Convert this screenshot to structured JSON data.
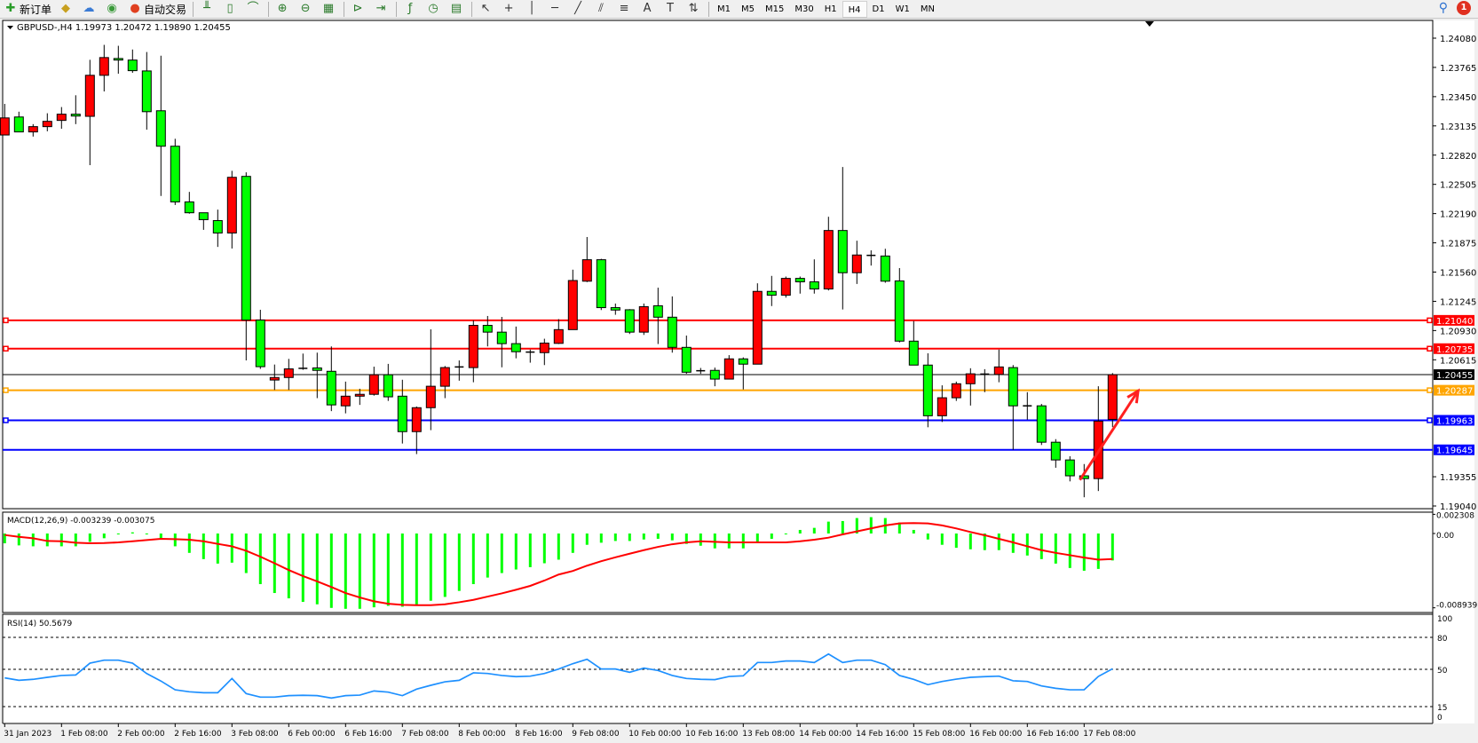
{
  "toolbar": {
    "items": [
      {
        "label": "新订单",
        "icon": "new-order-icon",
        "glyph": "✚",
        "color": "#2a9d2a"
      },
      {
        "label": "",
        "icon": "history-center-icon",
        "glyph": "◆",
        "color": "#c8a020"
      },
      {
        "label": "",
        "icon": "download-icon",
        "glyph": "☁",
        "color": "#3a7bd5"
      },
      {
        "label": "",
        "icon": "signal-icon",
        "glyph": "◉",
        "color": "#3a9a3a"
      },
      {
        "label": "自动交易",
        "icon": "auto-trading-icon",
        "glyph": "●",
        "color": "#e04020"
      }
    ],
    "tools": [
      {
        "icon": "bar-chart-icon",
        "glyph": "╨"
      },
      {
        "icon": "candlestick-icon",
        "glyph": "▯"
      },
      {
        "icon": "line-chart-icon",
        "glyph": "⌒"
      },
      {
        "icon": "zoom-in-icon",
        "glyph": "⊕"
      },
      {
        "icon": "zoom-out-icon",
        "glyph": "⊖"
      },
      {
        "icon": "tile-windows-icon",
        "glyph": "▦"
      },
      {
        "icon": "autoscroll-icon",
        "glyph": "⊳"
      },
      {
        "icon": "chart-shift-icon",
        "glyph": "⇥"
      },
      {
        "icon": "indicators-icon",
        "glyph": "ƒ"
      },
      {
        "icon": "periods-icon",
        "glyph": "◷"
      },
      {
        "icon": "templates-icon",
        "glyph": "▤"
      },
      {
        "icon": "cursor-icon",
        "glyph": "↖"
      },
      {
        "icon": "crosshair-icon",
        "glyph": "+"
      },
      {
        "icon": "vertical-line-icon",
        "glyph": "│"
      },
      {
        "icon": "horizontal-line-icon",
        "glyph": "─"
      },
      {
        "icon": "trendline-icon",
        "glyph": "╱"
      },
      {
        "icon": "equidistant-channel-icon",
        "glyph": "⫽"
      },
      {
        "icon": "fibonacci-icon",
        "glyph": "≡"
      },
      {
        "icon": "text-icon",
        "glyph": "A"
      },
      {
        "icon": "text-label-icon",
        "glyph": "T"
      },
      {
        "icon": "arrows-icon",
        "glyph": "⇅"
      }
    ],
    "timeframes": [
      "M1",
      "M5",
      "M15",
      "M30",
      "H1",
      "H4",
      "D1",
      "W1",
      "MN"
    ],
    "selected_timeframe": "H4",
    "notification_count": "1"
  },
  "chart_data": {
    "type": "candlestick",
    "title": "GBPUSD-,H4  1.19973 1.20472 1.19890 1.20455",
    "colors": {
      "up": "#ff0000",
      "down": "#00ff00",
      "outline": "#000000"
    },
    "ylim": [
      1.1904,
      1.2408
    ],
    "y_ticks": [
      "1.24080",
      "1.23765",
      "1.23450",
      "1.23135",
      "1.22820",
      "1.22505",
      "1.22190",
      "1.21875",
      "1.21560",
      "1.21245",
      "1.20930",
      "1.20615",
      "1.19355",
      "1.19040"
    ],
    "x_labels": [
      "31 Jan 2023",
      "1 Feb 08:00",
      "2 Feb 00:00",
      "2 Feb 16:00",
      "3 Feb 08:00",
      "6 Feb 00:00",
      "6 Feb 16:00",
      "7 Feb 08:00",
      "8 Feb 00:00",
      "8 Feb 16:00",
      "9 Feb 08:00",
      "10 Feb 00:00",
      "10 Feb 16:00",
      "13 Feb 08:00",
      "14 Feb 00:00",
      "14 Feb 16:00",
      "15 Feb 08:00",
      "16 Feb 00:00",
      "16 Feb 16:00",
      "17 Feb 08:00"
    ],
    "ohlc": [
      [
        1.23037,
        1.23372,
        1.23037,
        1.23221
      ],
      [
        1.23231,
        1.23288,
        1.2307,
        1.2307
      ],
      [
        1.2307,
        1.23154,
        1.2302,
        1.23127
      ],
      [
        1.23127,
        1.23271,
        1.23077,
        1.23184
      ],
      [
        1.23194,
        1.23338,
        1.23104,
        1.23261
      ],
      [
        1.23261,
        1.23465,
        1.23154,
        1.23241
      ],
      [
        1.23238,
        1.23847,
        1.22712,
        1.2368
      ],
      [
        1.2368,
        1.24008,
        1.23506,
        1.23871
      ],
      [
        1.23861,
        1.23998,
        1.23697,
        1.23844
      ],
      [
        1.23844,
        1.23958,
        1.23707,
        1.2373
      ],
      [
        1.23727,
        1.23931,
        1.23094,
        1.23288
      ],
      [
        1.23298,
        1.23891,
        1.2238,
        1.22916
      ],
      [
        1.22916,
        1.22996,
        1.22283,
        1.22316
      ],
      [
        1.22316,
        1.22424,
        1.22189,
        1.22199
      ],
      [
        1.22199,
        1.22199,
        1.22015,
        1.22125
      ],
      [
        1.22115,
        1.22233,
        1.21831,
        1.21981
      ],
      [
        1.21981,
        1.22651,
        1.21814,
        1.22581
      ],
      [
        1.22591,
        1.22635,
        1.20608,
        1.21043
      ],
      [
        1.21043,
        1.21154,
        1.20517,
        1.20541
      ],
      [
        1.20397,
        1.20564,
        1.2029,
        1.20424
      ],
      [
        1.20424,
        1.20625,
        1.2029,
        1.20517
      ],
      [
        1.20521,
        1.20682,
        1.20507,
        1.20523
      ],
      [
        1.20527,
        1.20692,
        1.20202,
        1.20501
      ],
      [
        1.20491,
        1.20759,
        1.20062,
        1.20129
      ],
      [
        1.20119,
        1.2038,
        1.20038,
        1.20223
      ],
      [
        1.20223,
        1.20303,
        1.20129,
        1.20243
      ],
      [
        1.20243,
        1.20541,
        1.20229,
        1.20454
      ],
      [
        1.20454,
        1.20571,
        1.20172,
        1.20216
      ],
      [
        1.20223,
        1.204,
        1.19713,
        1.19841
      ],
      [
        1.19841,
        1.20112,
        1.19599,
        1.20099
      ],
      [
        1.20099,
        1.20943,
        1.19857,
        1.2033
      ],
      [
        1.2033,
        1.20548,
        1.20202,
        1.20531
      ],
      [
        1.20534,
        1.20608,
        1.2039,
        1.20538
      ],
      [
        1.20531,
        1.2104,
        1.20373,
        1.20986
      ],
      [
        1.20986,
        1.21087,
        1.20759,
        1.20913
      ],
      [
        1.20913,
        1.21077,
        1.20534,
        1.20789
      ],
      [
        1.20789,
        1.20973,
        1.20631,
        1.20702
      ],
      [
        1.20698,
        1.20725,
        1.20584,
        1.20695
      ],
      [
        1.20692,
        1.20842,
        1.20558,
        1.20795
      ],
      [
        1.20792,
        1.21053,
        1.20785,
        1.2094
      ],
      [
        1.2094,
        1.21586,
        1.2094,
        1.21469
      ],
      [
        1.21462,
        1.21938,
        1.21452,
        1.21693
      ],
      [
        1.21693,
        1.21703,
        1.21151,
        1.21177
      ],
      [
        1.21177,
        1.21221,
        1.211,
        1.21151
      ],
      [
        1.21154,
        1.21161,
        1.20893,
        1.20913
      ],
      [
        1.20913,
        1.21221,
        1.20883,
        1.21187
      ],
      [
        1.21197,
        1.21392,
        1.20785,
        1.21074
      ],
      [
        1.21074,
        1.21298,
        1.20692,
        1.20749
      ],
      [
        1.20749,
        1.20876,
        1.20464,
        1.20481
      ],
      [
        1.20497,
        1.20527,
        1.20464,
        1.20494
      ],
      [
        1.20501,
        1.20531,
        1.2033,
        1.20407
      ],
      [
        1.20407,
        1.20665,
        1.20407,
        1.20625
      ],
      [
        1.20625,
        1.20641,
        1.20296,
        1.20568
      ],
      [
        1.20568,
        1.21439,
        1.20568,
        1.21352
      ],
      [
        1.21352,
        1.21519,
        1.21194,
        1.21311
      ],
      [
        1.21311,
        1.21512,
        1.21285,
        1.21492
      ],
      [
        1.21492,
        1.21512,
        1.21328,
        1.21455
      ],
      [
        1.21455,
        1.21697,
        1.21328,
        1.21378
      ],
      [
        1.21378,
        1.22156,
        1.21362,
        1.22008
      ],
      [
        1.22008,
        1.22692,
        1.21157,
        1.21553
      ],
      [
        1.21553,
        1.21898,
        1.21432,
        1.21744
      ],
      [
        1.2174,
        1.21794,
        1.2163,
        1.21737
      ],
      [
        1.21733,
        1.21811,
        1.21445,
        1.21462
      ],
      [
        1.21465,
        1.21603,
        1.20802,
        1.20816
      ],
      [
        1.20816,
        1.21033,
        1.20558,
        1.20558
      ],
      [
        1.20558,
        1.20685,
        1.19888,
        1.20012
      ],
      [
        1.20012,
        1.2034,
        1.19945,
        1.20206
      ],
      [
        1.20206,
        1.2038,
        1.20172,
        1.20357
      ],
      [
        1.20357,
        1.20524,
        1.20122,
        1.20464
      ],
      [
        1.20461,
        1.20514,
        1.20266,
        1.20457
      ],
      [
        1.20457,
        1.20725,
        1.20373,
        1.20538
      ],
      [
        1.20531,
        1.20558,
        1.19646,
        1.20119
      ],
      [
        1.20119,
        1.20266,
        1.19971,
        1.20115
      ],
      [
        1.20119,
        1.20139,
        1.19697,
        1.19727
      ],
      [
        1.19727,
        1.1976,
        1.19452,
        1.19536
      ],
      [
        1.19536,
        1.19576,
        1.19305,
        1.19365
      ],
      [
        1.19365,
        1.19492,
        1.19134,
        1.19335
      ],
      [
        1.19335,
        1.2033,
        1.19201,
        1.19954
      ],
      [
        1.19973,
        1.20472,
        1.1989,
        1.20455
      ]
    ],
    "horizontal_lines": [
      {
        "price": "1.21040",
        "color": "#ff0000",
        "marker": true
      },
      {
        "price": "1.20735",
        "color": "#ff0000",
        "marker": true
      },
      {
        "price": "1.20455",
        "color": "#000000",
        "marker": false,
        "thin": true
      },
      {
        "price": "1.20287",
        "color": "#ffa500",
        "marker": true
      },
      {
        "price": "1.19963",
        "color": "#0000ff",
        "marker": true
      },
      {
        "price": "1.19645",
        "color": "#0000ff",
        "marker": false
      }
    ],
    "annotation_arrow": {
      "color": "#ff2020",
      "from_bar": 75.7,
      "from_price": 1.1932,
      "to_bar": 79.8,
      "to_price": 1.2028
    },
    "macd": {
      "title": "MACD(12,26,9) -0.003239 -0.003075",
      "y_ticks": [
        "0.002308",
        "0.00",
        "-0.008939"
      ],
      "ylim": [
        -0.008939,
        0.002308
      ],
      "hist_color": "#00ff00",
      "signal_color": "#ff0000",
      "histogram": [
        -0.00118,
        -0.00143,
        -0.00154,
        -0.00154,
        -0.00154,
        -0.00154,
        -0.001,
        -0.00057,
        -0.00011,
        0.00014,
        -0.00011,
        -0.00057,
        -0.00154,
        -0.00233,
        -0.00308,
        -0.00362,
        -0.00351,
        -0.00476,
        -0.00609,
        -0.00716,
        -0.0078,
        -0.00823,
        -0.00852,
        -0.00895,
        -0.00906,
        -0.00906,
        -0.00888,
        -0.0087,
        -0.00881,
        -0.00859,
        -0.00809,
        -0.00763,
        -0.00691,
        -0.00609,
        -0.0053,
        -0.00476,
        -0.00433,
        -0.00405,
        -0.00358,
        -0.00315,
        -0.00233,
        -0.00136,
        -0.00111,
        -0.0009,
        -0.0009,
        -0.00072,
        -0.00064,
        -0.00082,
        -0.00125,
        -0.00147,
        -0.00179,
        -0.00179,
        -0.00179,
        -0.00111,
        -0.00064,
        -2e-05,
        0.00043,
        0.00068,
        0.00143,
        0.0015,
        0.00186,
        0.00197,
        0.00186,
        0.00132,
        0.00043,
        -0.00072,
        -0.00136,
        -0.00172,
        -0.0019,
        -0.002,
        -0.002,
        -0.00233,
        -0.00265,
        -0.00308,
        -0.00362,
        -0.00415,
        -0.00448,
        -0.00426,
        -0.003239
      ],
      "signal": [
        -0.00018,
        -0.0004,
        -0.00057,
        -0.0009,
        -0.00093,
        -0.00111,
        -0.00118,
        -0.00115,
        -0.00107,
        -0.00093,
        -0.00079,
        -0.00064,
        -0.00068,
        -0.00075,
        -0.00093,
        -0.00125,
        -0.00154,
        -0.00208,
        -0.00279,
        -0.00358,
        -0.0044,
        -0.00512,
        -0.00576,
        -0.00644,
        -0.00716,
        -0.0077,
        -0.00816,
        -0.00845,
        -0.00859,
        -0.00863,
        -0.00863,
        -0.00852,
        -0.00827,
        -0.00798,
        -0.00759,
        -0.0072,
        -0.00677,
        -0.0063,
        -0.00566,
        -0.00494,
        -0.00451,
        -0.00387,
        -0.00333,
        -0.00286,
        -0.00243,
        -0.002,
        -0.00161,
        -0.00129,
        -0.00107,
        -0.00093,
        -0.001,
        -0.00107,
        -0.00107,
        -0.00107,
        -0.00107,
        -0.00107,
        -0.00093,
        -0.00075,
        -0.0005,
        -0.00011,
        0.00025,
        0.00061,
        0.00097,
        0.00122,
        0.00125,
        0.00122,
        0.00097,
        0.00061,
        0.00018,
        -0.00021,
        -0.00064,
        -0.00107,
        -0.00154,
        -0.002,
        -0.00233,
        -0.00261,
        -0.0029,
        -0.00315,
        -0.003075
      ]
    },
    "rsi": {
      "title": "RSI(14) 50.5679",
      "y_ticks": [
        "100",
        "80",
        "50",
        "15",
        "0"
      ],
      "levels": [
        80,
        50,
        15
      ],
      "ylim": [
        0,
        100
      ],
      "color": "#1e90ff",
      "values": [
        42,
        39.7,
        40.6,
        42.5,
        44.2,
        44.7,
        55.8,
        58.6,
        58.6,
        55.8,
        46,
        39,
        30.8,
        28.9,
        28,
        28,
        41.4,
        27.2,
        23.9,
        23.9,
        25.3,
        25.6,
        25.3,
        23,
        25.3,
        25.8,
        29.7,
        28.6,
        25.3,
        31.4,
        35,
        38.3,
        39.7,
        46.7,
        46.1,
        44.2,
        43.1,
        43.6,
        46.1,
        50.3,
        55.3,
        59.4,
        50.3,
        50.3,
        47.2,
        51.1,
        48.9,
        44.2,
        41.4,
        40.6,
        40.3,
        43.3,
        43.9,
        56.4,
        56.4,
        57.8,
        57.8,
        56.4,
        64.4,
        56.4,
        58.6,
        58.6,
        54.4,
        44.2,
        40.6,
        35.6,
        38.6,
        40.8,
        42.5,
        43.1,
        43.6,
        39.2,
        38.6,
        34.4,
        32.2,
        30.8,
        30.8,
        43.3,
        50.5679
      ]
    }
  }
}
